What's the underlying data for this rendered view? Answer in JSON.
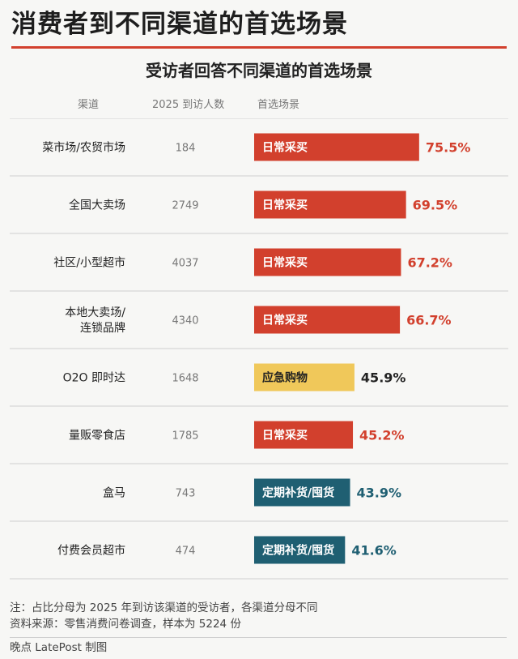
{
  "header": {
    "title": "消费者到不同渠道的首选场景",
    "subtitle": "受访者回答不同渠道的首选场景"
  },
  "columns": {
    "channel": "渠道",
    "visitors": "2025 到访人数",
    "scenario": "首选场景"
  },
  "colors": {
    "daily": "#d2402d",
    "emergency": "#f0c85a",
    "restock": "#1f5f72",
    "accent_rule": "#d2402d"
  },
  "chart_data": {
    "type": "bar",
    "orientation": "horizontal",
    "title": "受访者回答不同渠道的首选场景",
    "unit": "%",
    "categories": [
      "菜市场/农贸市场",
      "全国大卖场",
      "社区/小型超市",
      "本地大卖场/\n连锁品牌",
      "O2O 即时达",
      "量贩零食店",
      "盒马",
      "付费会员超市"
    ],
    "visitors": [
      184,
      2749,
      4037,
      4340,
      1648,
      1785,
      743,
      474
    ],
    "scenarios": [
      "日常采买",
      "日常采买",
      "日常采买",
      "日常采买",
      "应急购物",
      "日常采买",
      "定期补货/囤货",
      "定期补货/囤货"
    ],
    "scenario_colors": [
      "daily",
      "daily",
      "daily",
      "daily",
      "emergency",
      "daily",
      "restock",
      "restock"
    ],
    "values": [
      75.5,
      69.5,
      67.2,
      66.7,
      45.9,
      45.2,
      43.9,
      41.6
    ],
    "value_labels": [
      "75.5%",
      "69.5%",
      "67.2%",
      "66.7%",
      "45.9%",
      "45.2%",
      "43.9%",
      "41.6%"
    ],
    "xlim": [
      0,
      100
    ]
  },
  "notes": {
    "line1": "注：占比分母为 2025 年到访该渠道的受访者，各渠道分母不同",
    "line2": "资料来源：零售消费问卷调查，样本为 5224 份"
  },
  "credit": "晚点 LatePost 制图"
}
